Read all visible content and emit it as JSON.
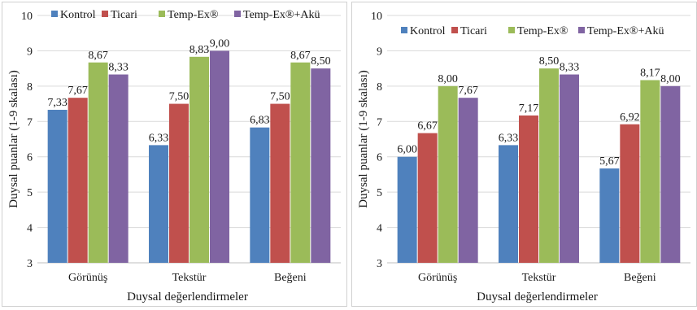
{
  "chart_data": [
    {
      "type": "bar",
      "title": "",
      "xlabel": "Duysal değerlendirmeler",
      "ylabel": "Duysal puanlar (1-9 skalası)",
      "ylim": [
        3,
        10
      ],
      "yticks": [
        "3",
        "4",
        "5",
        "6",
        "7",
        "8",
        "9",
        "10"
      ],
      "categories": [
        "Görünüş",
        "Tekstür",
        "Beğeni"
      ],
      "legend_position": "top",
      "grid": true,
      "series": [
        {
          "name": "Kontrol",
          "color": "#4f81bd",
          "values": [
            7.33,
            6.33,
            6.83
          ],
          "labels": [
            "7,33",
            "6,33",
            "6,83"
          ]
        },
        {
          "name": "Ticari",
          "color": "#c0504d",
          "values": [
            7.67,
            7.5,
            7.5
          ],
          "labels": [
            "7,67",
            "7,50",
            "7,50"
          ]
        },
        {
          "name": "Temp-Ex®",
          "color": "#9bbb59",
          "values": [
            8.67,
            8.83,
            8.67
          ],
          "labels": [
            "8,67",
            "8,83",
            "8,67"
          ]
        },
        {
          "name": "Temp-Ex®+Akü",
          "color": "#8064a2",
          "values": [
            8.33,
            9.0,
            8.5
          ],
          "labels": [
            "8,33",
            "9,00",
            "8,50"
          ]
        }
      ]
    },
    {
      "type": "bar",
      "title": "",
      "xlabel": "Duysal değerlendirmeler",
      "ylabel": "Duysal puanlar (1-9 skalası)",
      "ylim": [
        3,
        10
      ],
      "yticks": [
        "3",
        "4",
        "5",
        "6",
        "7",
        "8",
        "9",
        "10"
      ],
      "categories": [
        "Görünüş",
        "Tekstür",
        "Beğeni"
      ],
      "legend_position": "top",
      "grid": true,
      "series": [
        {
          "name": "Kontrol",
          "color": "#4f81bd",
          "values": [
            6.0,
            6.33,
            5.67
          ],
          "labels": [
            "6,00",
            "6,33",
            "5,67"
          ]
        },
        {
          "name": "Ticari",
          "color": "#c0504d",
          "values": [
            6.67,
            7.17,
            6.92
          ],
          "labels": [
            "6,67",
            "7,17",
            "6,92"
          ]
        },
        {
          "name": "Temp-Ex®",
          "color": "#9bbb59",
          "values": [
            8.0,
            8.5,
            8.17
          ],
          "labels": [
            "8,00",
            "8,50",
            "8,17"
          ]
        },
        {
          "name": "Temp-Ex®+Akü",
          "color": "#8064a2",
          "values": [
            7.67,
            8.33,
            8.0
          ],
          "labels": [
            "7,67",
            "8,33",
            "8,00"
          ]
        }
      ]
    }
  ]
}
